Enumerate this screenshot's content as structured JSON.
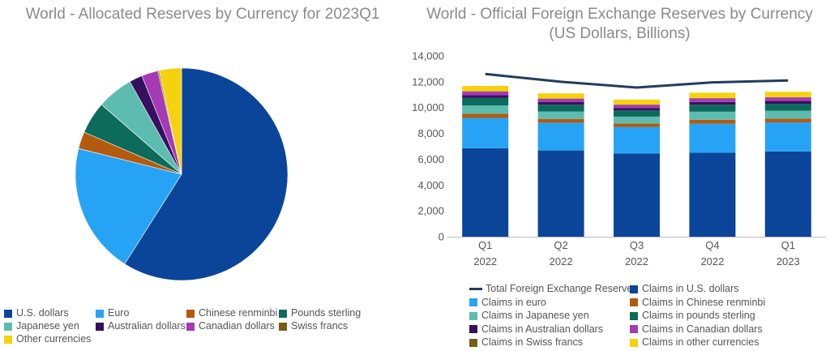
{
  "left": {
    "title": "World - Allocated Reserves by Currency for 2023Q1"
  },
  "right": {
    "title_line1": "World - Official Foreign Exchange Reserves by Currency",
    "title_line2": "(US Dollars, Billions)"
  },
  "colors": {
    "usd": "#0a4599",
    "eur": "#27a3f5",
    "cny": "#b35a0f",
    "gbp": "#0c6b5a",
    "jpy": "#5cbcb0",
    "aud": "#35105f",
    "cad": "#a53ab5",
    "chf": "#7a5e10",
    "other": "#f5d20e",
    "total": "#243b5e"
  },
  "chart_data": [
    {
      "type": "pie",
      "title": "World - Allocated Reserves by Currency for 2023Q1",
      "legend_position": "bottom",
      "slices": [
        {
          "key": "usd",
          "label": "U.S. dollars",
          "value": 59.0
        },
        {
          "key": "eur",
          "label": "Euro",
          "value": 19.9
        },
        {
          "key": "cny",
          "label": "Chinese renminbi",
          "value": 2.6
        },
        {
          "key": "gbp",
          "label": "Pounds sterling",
          "value": 4.9
        },
        {
          "key": "jpy",
          "label": "Japanese yen",
          "value": 5.5
        },
        {
          "key": "aud",
          "label": "Australian dollars",
          "value": 2.0
        },
        {
          "key": "cad",
          "label": "Canadian dollars",
          "value": 2.5
        },
        {
          "key": "chf",
          "label": "Swiss francs",
          "value": 0.2
        },
        {
          "key": "other",
          "label": "Other currencies",
          "value": 3.4
        }
      ]
    },
    {
      "type": "bar",
      "stacked": true,
      "title": "World - Official Foreign Exchange Reserves by Currency (US Dollars, Billions)",
      "categories": [
        [
          "Q1",
          "2022"
        ],
        [
          "Q2",
          "2022"
        ],
        [
          "Q3",
          "2022"
        ],
        [
          "Q4",
          "2022"
        ],
        [
          "Q1",
          "2023"
        ]
      ],
      "ylim": [
        0,
        14000
      ],
      "yticks": [
        "0",
        "2,000",
        "4,000",
        "6,000",
        "8,000",
        "10,000",
        "12,000",
        "14,000"
      ],
      "ytick_values": [
        0,
        2000,
        4000,
        6000,
        8000,
        10000,
        12000,
        14000
      ],
      "legend_position": "bottom",
      "series": [
        {
          "key": "usd",
          "name": "Claims in U.S. dollars",
          "values": [
            6850,
            6680,
            6450,
            6500,
            6600
          ]
        },
        {
          "key": "eur",
          "name": "Claims in euro",
          "values": [
            2350,
            2150,
            2050,
            2250,
            2250
          ]
        },
        {
          "key": "cny",
          "name": "Claims in Chinese renminbi",
          "values": [
            320,
            290,
            270,
            300,
            290
          ]
        },
        {
          "key": "jpy",
          "name": "Claims in Japanese yen",
          "values": [
            640,
            580,
            530,
            630,
            610
          ]
        },
        {
          "key": "gbp",
          "name": "Claims in pounds sterling",
          "values": [
            580,
            520,
            480,
            540,
            540
          ]
        },
        {
          "key": "aud",
          "name": "Claims in Australian dollars",
          "values": [
            220,
            200,
            190,
            210,
            220
          ]
        },
        {
          "key": "cad",
          "name": "Claims in Canadian dollars",
          "values": [
            280,
            260,
            240,
            280,
            280
          ]
        },
        {
          "key": "chf",
          "name": "Claims in Swiss francs",
          "values": [
            20,
            20,
            20,
            20,
            20
          ]
        },
        {
          "key": "other",
          "name": "Claims in other currencies",
          "values": [
            420,
            400,
            390,
            420,
            410
          ]
        }
      ],
      "line": {
        "key": "total",
        "name": "Total Foreign Exchange Reserves",
        "values": [
          12600,
          12000,
          11550,
          11950,
          12100
        ]
      },
      "legend_order": [
        [
          "line",
          "total"
        ],
        [
          "bar",
          "usd"
        ],
        [
          "bar",
          "eur"
        ],
        [
          "bar",
          "cny"
        ],
        [
          "bar",
          "jpy"
        ],
        [
          "bar",
          "gbp"
        ],
        [
          "bar",
          "aud"
        ],
        [
          "bar",
          "cad"
        ],
        [
          "bar",
          "chf"
        ],
        [
          "bar",
          "other"
        ]
      ]
    }
  ]
}
